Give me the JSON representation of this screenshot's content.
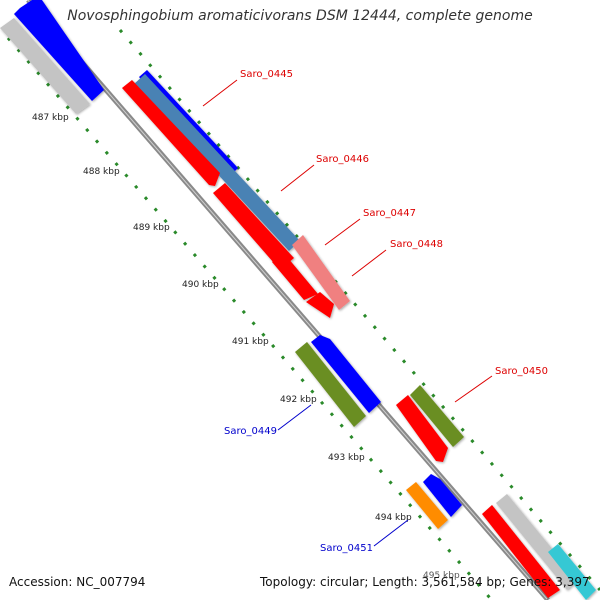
{
  "title": "Novosphingobium aromaticivorans DSM 12444, complete genome",
  "accession": "Accession: NC_007794",
  "summary": "Topology: circular; Length: 3,561,584 bp; Genes: 3,397",
  "colors": {
    "backbone": "#8c8c8c",
    "ruler": "#2a8a2a",
    "feature_red": "#ff0000",
    "feature_blue": "#0000ff",
    "feature_steelblue": "#4a82b4",
    "feature_pink": "#f08080",
    "feature_olive": "#6b8e23",
    "feature_orange": "#ff8c00",
    "feature_gray": "#c0c0c0",
    "feature_cyan": "#35c8d4",
    "label_red": "#dd0000",
    "label_blue": "#0000cc"
  },
  "ruler_labels": [
    "487 kbp",
    "488 kbp",
    "489 kbp",
    "490 kbp",
    "491 kbp",
    "492 kbp",
    "493 kbp",
    "494 kbp",
    "495 kbp"
  ],
  "gene_labels": {
    "saro_0445": "Saro_0445",
    "saro_0446": "Saro_0446",
    "saro_0447": "Saro_0447",
    "saro_0448": "Saro_0448",
    "saro_0449": "Saro_0449",
    "saro_0450": "Saro_0450",
    "saro_0451": "Saro_0451"
  }
}
